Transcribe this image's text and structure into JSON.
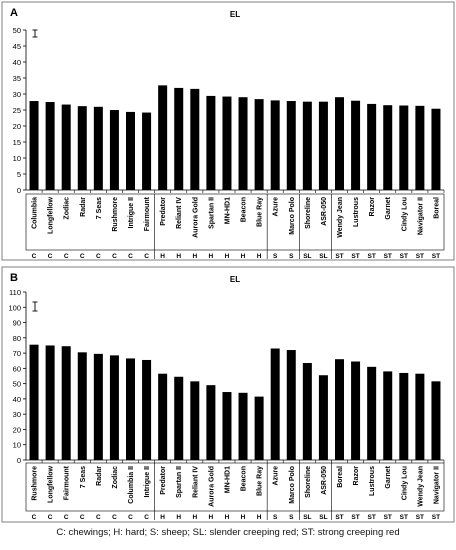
{
  "caption": "C: chewings; H: hard; S: sheep; SL: slender creeping red; ST: strong creeping red",
  "chart_data": [
    {
      "type": "bar",
      "panel": "A",
      "title": "EL",
      "ylim": [
        0,
        50
      ],
      "yticks": [
        0,
        5,
        10,
        15,
        20,
        25,
        30,
        35,
        40,
        45,
        50
      ],
      "grid": false,
      "error_bar": true,
      "categories": [
        "Columbia",
        "Longfellow",
        "Zodiac",
        "Radar",
        "7 Seas",
        "Rushmore",
        "Intrigue II",
        "Fairmount",
        "Predator",
        "Reliant IV",
        "Aurora Gold",
        "Spartan II",
        "MN-HD1",
        "Beacon",
        "Blue Ray",
        "Azure",
        "Marco Polo",
        "Shoreline",
        "ASR-050",
        "Wendy Jean",
        "Lustrous",
        "Razor",
        "Garnet",
        "Cindy Lou",
        "Navigator II",
        "Boreal"
      ],
      "groups": [
        "C",
        "C",
        "C",
        "C",
        "C",
        "C",
        "C",
        "C",
        "H",
        "H",
        "H",
        "H",
        "H",
        "H",
        "H",
        "S",
        "S",
        "SL",
        "SL",
        "ST",
        "ST",
        "ST",
        "ST",
        "ST",
        "ST",
        "ST"
      ],
      "values": [
        27.8,
        27.5,
        26.7,
        26.2,
        26.0,
        25.0,
        24.4,
        24.2,
        32.7,
        31.9,
        31.6,
        29.4,
        29.2,
        29.0,
        28.4,
        28.0,
        27.8,
        27.6,
        27.6,
        29.0,
        27.9,
        26.9,
        26.5,
        26.4,
        26.3,
        25.4
      ]
    },
    {
      "type": "bar",
      "panel": "B",
      "title": "EL",
      "ylim": [
        0,
        110
      ],
      "yticks": [
        0,
        10,
        20,
        30,
        40,
        50,
        60,
        70,
        80,
        90,
        100,
        110
      ],
      "grid": false,
      "error_bar": true,
      "categories": [
        "Rushmore",
        "Longfellow",
        "Fairmount",
        "7 Seas",
        "Radar",
        "Zodiac",
        "Columbia II",
        "Intrigue II",
        "Predator",
        "Spartan II",
        "Reliant IV",
        "Aurora Gold",
        "MN-HD1",
        "Beacon",
        "Blue Ray",
        "Azure",
        "Marco Polo",
        "Shoreline",
        "ASR-050",
        "Boreal",
        "Razor",
        "Lustrous",
        "Garnet",
        "Cindy Lou",
        "Wendy Jean",
        "Navigator II"
      ],
      "groups": [
        "C",
        "C",
        "C",
        "C",
        "C",
        "C",
        "C",
        "C",
        "H",
        "H",
        "H",
        "H",
        "H",
        "H",
        "H",
        "S",
        "S",
        "SL",
        "SL",
        "ST",
        "ST",
        "ST",
        "ST",
        "ST",
        "ST",
        "ST"
      ],
      "values": [
        75.5,
        75.0,
        74.5,
        70.5,
        69.5,
        68.5,
        66.5,
        65.5,
        56.5,
        54.5,
        51.5,
        49.0,
        44.5,
        44.0,
        41.5,
        73.0,
        72.0,
        63.5,
        55.5,
        66.0,
        64.5,
        61.0,
        58.0,
        57.0,
        56.5,
        51.5
      ]
    }
  ]
}
